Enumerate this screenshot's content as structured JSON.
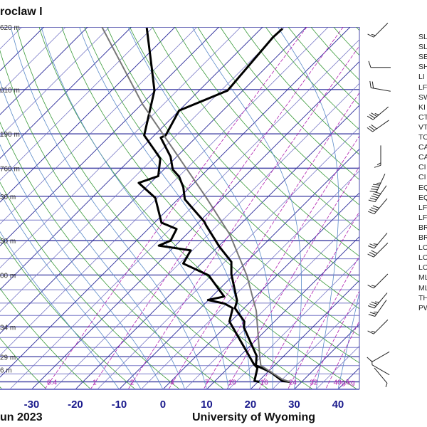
{
  "header": {
    "title": "roclaw I"
  },
  "footer": {
    "date": "un 2023",
    "credit": "University of Wyoming"
  },
  "index_labels": [
    "SL",
    "SL",
    "SE",
    "SH",
    "LI",
    "LF",
    "SW",
    "KI",
    "CT",
    "VT",
    "TO",
    "CA",
    "CA",
    "CI",
    "CI",
    "EQ",
    "EQ",
    "LF",
    "LF",
    "BR",
    "BR",
    "LC",
    "LC",
    "LC",
    "ML",
    "ML",
    "TH",
    "PW"
  ],
  "chart_data": {
    "type": "line",
    "subtype": "skew-t log-p",
    "xlabel": "Temperature (°C)",
    "ylabel": "Pressure (hPa)",
    "xlim": [
      -37,
      45
    ],
    "ylim": [
      1050,
      100
    ],
    "x_ticks": [
      "-30",
      "-20",
      "-10",
      "0",
      "10",
      "20",
      "30",
      "40"
    ],
    "x_tick_values": [
      -30,
      -20,
      -10,
      0,
      10,
      20,
      30,
      40
    ],
    "height_labels": [
      {
        "p": 100,
        "text": "620 m"
      },
      {
        "p": 150,
        "text": "010 m"
      },
      {
        "p": 200,
        "text": "190 m"
      },
      {
        "p": 250,
        "text": "760 m"
      },
      {
        "p": 300,
        "text": "30 m"
      },
      {
        "p": 400,
        "text": "30 m"
      },
      {
        "p": 500,
        "text": "00 m"
      },
      {
        "p": 700,
        "text": "34 m"
      },
      {
        "p": 850,
        "text": "29 m"
      },
      {
        "p": 925,
        "text": "6 m"
      }
    ],
    "mixing_ratio_labels": [
      "0.4",
      "1",
      "2",
      "4",
      "7",
      "10",
      "16",
      "24",
      "32",
      "40g/kg"
    ],
    "mixing_ratio_values": [
      0.4,
      1,
      2,
      4,
      7,
      10,
      16,
      24,
      32,
      40
    ],
    "series": [
      {
        "name": "temperature",
        "color": "#000000",
        "points": [
          [
            1000,
            27.3
          ],
          [
            995,
            25.4
          ],
          [
            939,
            20.7
          ],
          [
            899,
            15.8
          ],
          [
            844,
            13.7
          ],
          [
            703,
            4.4
          ],
          [
            676,
            3.1
          ],
          [
            620,
            -2.1
          ],
          [
            591,
            -3.3
          ],
          [
            497,
            -10.7
          ],
          [
            459,
            -13.5
          ],
          [
            416,
            -19.7
          ],
          [
            363,
            -27.5
          ],
          [
            354,
            -28.8
          ],
          [
            306,
            -38.4
          ],
          [
            283,
            -41.5
          ],
          [
            264,
            -44.9
          ],
          [
            252,
            -48.0
          ],
          [
            232,
            -51.4
          ],
          [
            205,
            -58.0
          ],
          [
            202,
            -57.4
          ],
          [
            172,
            -60.0
          ],
          [
            151,
            -53.5
          ],
          [
            107,
            -55.3
          ],
          [
            101,
            -55.1
          ]
        ]
      },
      {
        "name": "dewpoint",
        "color": "#000000",
        "points": [
          [
            1000,
            20.3
          ],
          [
            994,
            19.0
          ],
          [
            914,
            16.7
          ],
          [
            893,
            15.1
          ],
          [
            676,
            -0.3
          ],
          [
            620,
            -2.6
          ],
          [
            602,
            -5.5
          ],
          [
            588,
            -10.1
          ],
          [
            575,
            -7.2
          ],
          [
            501,
            -15.6
          ],
          [
            464,
            -24.1
          ],
          [
            426,
            -25.4
          ],
          [
            413,
            -33.8
          ],
          [
            400,
            -32.2
          ],
          [
            371,
            -33.5
          ],
          [
            356,
            -38.4
          ],
          [
            303,
            -45.5
          ],
          [
            275,
            -52.7
          ],
          [
            263,
            -49.8
          ],
          [
            235,
            -53.3
          ],
          [
            229,
            -54.8
          ],
          [
            202,
            -62.3
          ],
          [
            151,
            -70.2
          ],
          [
            131,
            -75.8
          ],
          [
            100.5,
            -86.3
          ]
        ]
      },
      {
        "name": "parcel",
        "color": "#777777",
        "points": [
          [
            1000,
            27.3
          ],
          [
            984,
            25.0
          ],
          [
            899,
            16.9
          ],
          [
            857,
            15.0
          ],
          [
            631,
            3.4
          ],
          [
            502,
            -6.8
          ],
          [
            385,
            -20.0
          ],
          [
            302,
            -34.0
          ],
          [
            165,
            -69.8
          ],
          [
            100,
            -96.7
          ]
        ]
      }
    ],
    "wind_barbs": [
      {
        "p": 102,
        "dir": 225,
        "kt": 15
      },
      {
        "p": 130,
        "dir": 270,
        "kt": 10
      },
      {
        "p": 150,
        "dir": 280,
        "kt": 20
      },
      {
        "p": 175,
        "dir": 230,
        "kt": 35
      },
      {
        "p": 190,
        "dir": 235,
        "kt": 30
      },
      {
        "p": 230,
        "dir": 180,
        "kt": 15
      },
      {
        "p": 275,
        "dir": 205,
        "kt": 45
      },
      {
        "p": 295,
        "dir": 215,
        "kt": 50
      },
      {
        "p": 320,
        "dir": 220,
        "kt": 40
      },
      {
        "p": 400,
        "dir": 220,
        "kt": 25
      },
      {
        "p": 425,
        "dir": 225,
        "kt": 30
      },
      {
        "p": 520,
        "dir": 225,
        "kt": 15
      },
      {
        "p": 590,
        "dir": 220,
        "kt": 35
      },
      {
        "p": 620,
        "dir": 215,
        "kt": 25
      },
      {
        "p": 700,
        "dir": 225,
        "kt": 15
      },
      {
        "p": 850,
        "dir": 240,
        "kt": 10
      },
      {
        "p": 925,
        "dir": 300,
        "kt": 5
      },
      {
        "p": 960,
        "dir": 140,
        "kt": 5
      }
    ]
  }
}
